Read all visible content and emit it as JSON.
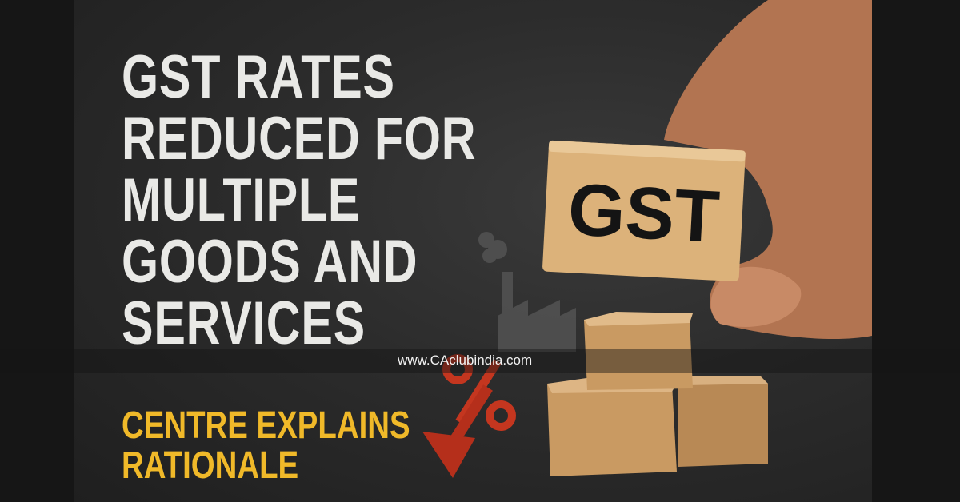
{
  "headline": {
    "lines": [
      "GST RATES",
      "REDUCED FOR",
      "MULTIPLE",
      "GOODS AND",
      "SERVICES"
    ]
  },
  "subheadline": {
    "lines": [
      "CENTRE EXPLAINS",
      "RATIONALE"
    ]
  },
  "block_text": "GST",
  "watermark": "www.CAclubindia.com",
  "colors": {
    "background": "#2c2c2c",
    "headline": "#e9e9e6",
    "subheadline": "#f0b929",
    "percent_arrow": "#c4361f",
    "wood_block": "#dcb27a",
    "cardboard": "#c99a62"
  },
  "icons": [
    "factory-icon",
    "percent-down-arrow-icon"
  ]
}
